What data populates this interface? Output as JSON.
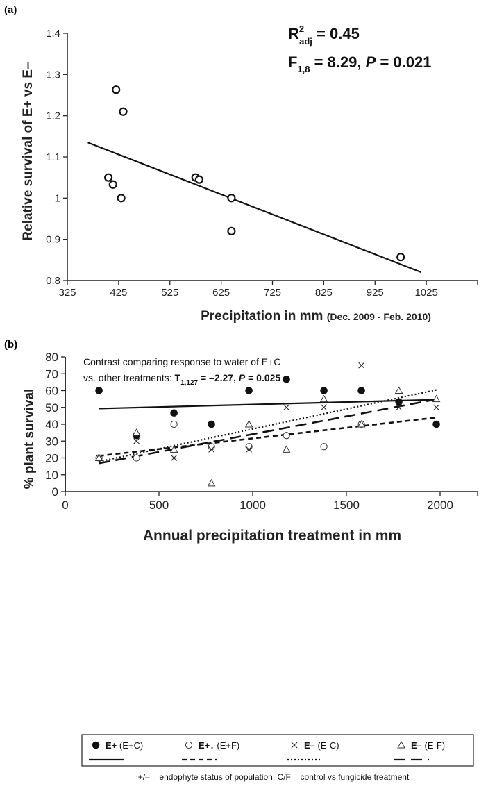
{
  "chart_data": [
    {
      "panel": "(a)",
      "type": "scatter",
      "xlabel": "Precipitation in mm",
      "xlabel_suffix": "(Dec. 2009 - Feb. 2010)",
      "ylabel": "Relative survival of E+ vs E–",
      "xlim": [
        325,
        1125
      ],
      "ylim": [
        0.8,
        1.4
      ],
      "x_ticks": [
        325,
        425,
        525,
        625,
        725,
        825,
        925,
        1025
      ],
      "y_ticks": [
        0.8,
        0.9,
        1.0,
        1.1,
        1.2,
        1.3,
        1.4
      ],
      "y_tick_labels": [
        "0.8",
        "0.9",
        "1",
        "1.1",
        "1.2",
        "1.3",
        "1.4"
      ],
      "points": [
        {
          "x": 405,
          "y": 1.05
        },
        {
          "x": 414,
          "y": 1.033
        },
        {
          "x": 420,
          "y": 1.263
        },
        {
          "x": 430,
          "y": 1.0
        },
        {
          "x": 434,
          "y": 1.21
        },
        {
          "x": 575,
          "y": 1.05
        },
        {
          "x": 582,
          "y": 1.045
        },
        {
          "x": 645,
          "y": 1.0
        },
        {
          "x": 645,
          "y": 0.92
        },
        {
          "x": 975,
          "y": 0.857
        }
      ],
      "fit_line": {
        "x": [
          365,
          1015
        ],
        "y": [
          1.135,
          0.82
        ]
      },
      "stats": {
        "r2_main": "R",
        "r2_sup": "2",
        "r2_sub": "adj",
        "r2_value": " = 0.45",
        "f_main": "F",
        "f_sub": "1,8",
        "f_value": " = 8.29, ",
        "p_label": "P",
        "p_value": " = 0.021"
      }
    },
    {
      "panel": "(b)",
      "type": "scatter",
      "xlabel": "Annual precipitation treatment in mm",
      "ylabel": "% plant survival",
      "xlim": [
        0,
        2200
      ],
      "ylim": [
        0,
        80
      ],
      "x_ticks": [
        0,
        500,
        1000,
        1500,
        2000
      ],
      "y_ticks": [
        0,
        10,
        20,
        30,
        40,
        50,
        60,
        70,
        80
      ],
      "contrast": {
        "line1": "Contrast comparing response to water of E+C",
        "line2_prefix": "vs. other treatments:  ",
        "t_main": "T",
        "t_sub": "1,127",
        "t_value": " = –2.27, ",
        "p_label": "P",
        "p_value": " = 0.025"
      },
      "series": [
        {
          "key": "epc",
          "marker": "filled-circle",
          "legend_bold": "E+",
          "legend_rest": " (E+C)",
          "line_style": "solid",
          "x": [
            180,
            380,
            580,
            780,
            980,
            1180,
            1380,
            1580,
            1780,
            1980
          ],
          "y": [
            60,
            33.3,
            46.7,
            40,
            60,
            66.7,
            60,
            60,
            53.3,
            40
          ],
          "fit": {
            "x": [
              180,
              1980
            ],
            "y": [
              49.3,
              54.6
            ]
          }
        },
        {
          "key": "epf",
          "marker": "open-circle",
          "legend_bold": "E+↓",
          "legend_rest": " (E+F)",
          "line_style": "dashed-short",
          "x": [
            180,
            380,
            580,
            780,
            980,
            1180,
            1380,
            1580
          ],
          "y": [
            20,
            20,
            40,
            26.7,
            26.7,
            33.3,
            26.7,
            40
          ],
          "fit": {
            "x": [
              180,
              1980
            ],
            "y": [
              21.2,
              44.0
            ]
          }
        },
        {
          "key": "emc",
          "marker": "x",
          "legend_bold": "E–",
          "legend_rest": " (E-C)",
          "line_style": "dotted",
          "x": [
            180,
            380,
            580,
            780,
            980,
            1180,
            1380,
            1580,
            1780,
            1980
          ],
          "y": [
            20,
            30,
            20,
            25,
            25,
            50,
            50,
            75,
            50,
            50
          ],
          "fit": {
            "x": [
              180,
              1980
            ],
            "y": [
              17.8,
              60.4
            ]
          }
        },
        {
          "key": "emf",
          "marker": "open-triangle",
          "legend_bold": "E–",
          "legend_rest": " (E-F)",
          "line_style": "dashed-long",
          "x": [
            180,
            380,
            580,
            780,
            980,
            1180,
            1380,
            1580,
            1780,
            1980
          ],
          "y": [
            20,
            35,
            25,
            5,
            40,
            25,
            55,
            40,
            60,
            55
          ],
          "fit": {
            "x": [
              180,
              1980
            ],
            "y": [
              16.8,
              54.8
            ]
          }
        }
      ],
      "footnote": "+/– = endophyte status of population, C/F = control vs fungicide treatment"
    }
  ]
}
